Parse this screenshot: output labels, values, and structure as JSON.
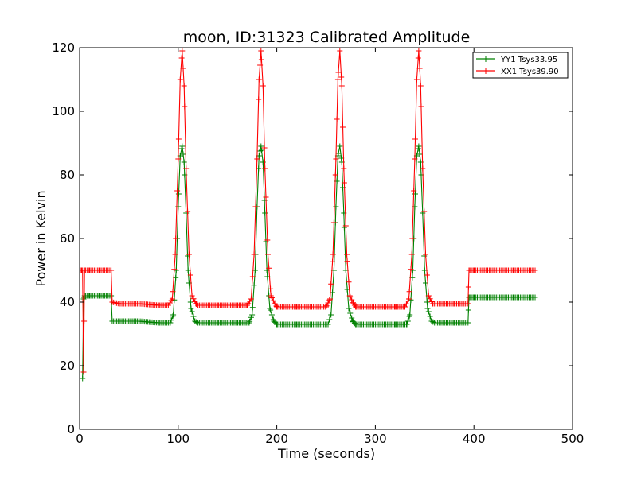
{
  "chart_data": {
    "type": "line",
    "title": "moon, ID:31323 Calibrated Amplitude",
    "xlabel": "Time (seconds)",
    "ylabel": "Power in Kelvin",
    "xlim": [
      0,
      500
    ],
    "ylim": [
      0,
      120
    ],
    "x_ticks": [
      0,
      100,
      200,
      300,
      400,
      500
    ],
    "y_ticks": [
      0,
      20,
      40,
      60,
      80,
      100,
      120
    ],
    "x_tick_labels": [
      "0",
      "100",
      "200",
      "300",
      "400",
      "500"
    ],
    "y_tick_labels": [
      "0",
      "20",
      "40",
      "60",
      "80",
      "100",
      "120"
    ],
    "grid": false,
    "legend_position": "top-right",
    "marker": "+",
    "series": [
      {
        "name": "YY1 Tsys33.95",
        "color": "#008000",
        "x": [
          3,
          4,
          5,
          10,
          20,
          32,
          33,
          40,
          60,
          80,
          92,
          95,
          98,
          100,
          102,
          104,
          106,
          108,
          110,
          113,
          117,
          120,
          140,
          160,
          172,
          175,
          178,
          180,
          182,
          184,
          186,
          188,
          190,
          193,
          197,
          200,
          220,
          240,
          252,
          255,
          258,
          260,
          262,
          264,
          266,
          268,
          270,
          273,
          277,
          280,
          300,
          320,
          332,
          335,
          338,
          340,
          342,
          344,
          346,
          348,
          350,
          353,
          357,
          360,
          380,
          394,
          395,
          400,
          420,
          440,
          462
        ],
        "y": [
          16,
          41,
          42,
          42,
          42,
          42,
          34,
          34,
          34,
          33.5,
          33.5,
          36,
          50,
          70,
          86,
          89,
          84,
          68,
          50,
          38,
          34,
          33.5,
          33.5,
          33.5,
          33.5,
          36,
          50,
          70,
          86,
          89,
          84,
          68,
          50,
          38,
          34,
          33,
          33,
          33,
          33,
          36,
          50,
          70,
          86,
          89,
          84,
          68,
          50,
          38,
          34,
          33,
          33,
          33,
          33,
          36,
          50,
          70,
          86,
          89,
          84,
          68,
          50,
          38,
          34,
          33.5,
          33.5,
          33.5,
          41.5,
          41.5,
          41.5,
          41.5,
          41.5
        ]
      },
      {
        "name": "XX1 Tsys39.90",
        "color": "#ff0000",
        "x": [
          0,
          2,
          3,
          4,
          5,
          10,
          20,
          32,
          33,
          40,
          60,
          80,
          90,
          94,
          97,
          100,
          102,
          104,
          106,
          108,
          111,
          114,
          118,
          120,
          140,
          160,
          170,
          174,
          177,
          180,
          182,
          184,
          186,
          188,
          191,
          194,
          198,
          200,
          220,
          240,
          250,
          254,
          257,
          260,
          262,
          264,
          266,
          268,
          271,
          274,
          278,
          280,
          300,
          320,
          330,
          334,
          337,
          340,
          342,
          344,
          346,
          348,
          351,
          354,
          358,
          360,
          380,
          394,
          395,
          400,
          420,
          440,
          462
        ],
        "y": [
          50,
          50,
          50,
          18,
          50,
          50,
          50,
          50,
          40,
          39.5,
          39.5,
          39,
          39,
          41,
          55,
          85,
          110,
          119,
          108,
          82,
          55,
          42,
          39.5,
          39,
          39,
          39,
          39,
          41,
          55,
          85,
          110,
          119,
          108,
          82,
          55,
          42,
          39.5,
          38.5,
          38.5,
          38.5,
          38.5,
          41,
          55,
          85,
          110,
          119,
          108,
          82,
          55,
          42,
          39.5,
          38.5,
          38.5,
          38.5,
          38.5,
          41,
          55,
          85,
          110,
          119,
          108,
          82,
          55,
          42,
          39.5,
          39.5,
          39.5,
          39.5,
          50,
          50,
          50,
          50,
          50
        ]
      }
    ]
  }
}
